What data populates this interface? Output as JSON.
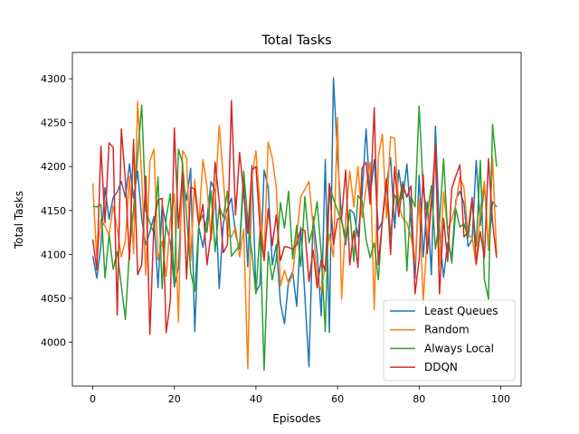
{
  "chart_data": {
    "type": "line",
    "title": "Total Tasks",
    "xlabel": "Episodes",
    "ylabel": "Total Tasks",
    "xlim": [
      -5,
      105
    ],
    "ylim": [
      3950,
      4330
    ],
    "xticks": [
      0,
      20,
      40,
      60,
      80,
      100
    ],
    "yticks": [
      4000,
      4050,
      4100,
      4150,
      4200,
      4250,
      4300
    ],
    "grid": false,
    "legend_position": "lower-right",
    "series": [
      {
        "name": "Least Queues",
        "color": "#1f77b4",
        "values": [
          4098,
          4073,
          4110,
          4176,
          4140,
          4165,
          4171,
          4183,
          4165,
          4203,
          4164,
          4195,
          4141,
          4111,
          4126,
          4143,
          4062,
          4156,
          4133,
          4114,
          4063,
          4085,
          4185,
          4162,
          4198,
          4012,
          4131,
          4108,
          4140,
          4183,
          4172,
          4061,
          4136,
          4152,
          4164,
          4123,
          4106,
          4185,
          4086,
          4201,
          4057,
          4066,
          4196,
          4177,
          4088,
          4111,
          4045,
          4021,
          4070,
          4080,
          4041,
          4131,
          4052,
          3972,
          4143,
          4102,
          4030,
          4208,
          4011,
          4301,
          4212,
          4140,
          4111,
          4151,
          4147,
          4120,
          4168,
          4243,
          4165,
          4208,
          4128,
          4138,
          4181,
          4210,
          4130,
          4196,
          4163,
          4203,
          4139,
          4072,
          4190,
          4097,
          4160,
          4077,
          4246,
          4124,
          4074,
          4113,
          4097,
          4162,
          4172,
          4158,
          4109,
          4117,
          4207,
          4133,
          4180,
          4105,
          4160,
          4154
        ]
      },
      {
        "name": "Random",
        "color": "#ff7f0e",
        "values": [
          4181,
          4093,
          4140,
          4132,
          4122,
          4155,
          4130,
          4097,
          4116,
          4189,
          4101,
          4274,
          4188,
          4076,
          4206,
          4220,
          4094,
          4115,
          4075,
          4138,
          4169,
          4023,
          4218,
          4210,
          4093,
          4185,
          4134,
          4208,
          4178,
          4116,
          4164,
          4247,
          4187,
          4122,
          4120,
          4131,
          4097,
          4129,
          3970,
          4188,
          4218,
          4154,
          4095,
          4228,
          4210,
          4176,
          4064,
          4082,
          4066,
          4077,
          4121,
          4166,
          4174,
          4183,
          4133,
          4073,
          4059,
          4087,
          4123,
          4097,
          4256,
          4049,
          4140,
          4195,
          4154,
          4200,
          4142,
          4176,
          4205,
          4037,
          4211,
          4237,
          4141,
          4234,
          4232,
          4156,
          4141,
          4136,
          4120,
          4092,
          4163,
          4046,
          4120,
          4165,
          4207,
          4088,
          4171,
          4128,
          4140,
          4157,
          4188,
          4176,
          4122,
          4119,
          4088,
          4150,
          4183,
          4106,
          4210,
          4100
        ]
      },
      {
        "name": "Always Local",
        "color": "#2ca02c",
        "values": [
          4155,
          4154,
          4157,
          4073,
          4123,
          4083,
          4103,
          4064,
          4026,
          4105,
          4151,
          4213,
          4270,
          4150,
          4136,
          4124,
          4188,
          4061,
          4142,
          4169,
          4065,
          4220,
          4204,
          4144,
          4080,
          4058,
          4135,
          4145,
          4125,
          4172,
          4103,
          4154,
          4142,
          4172,
          4098,
          4104,
          4110,
          4195,
          4138,
          4102,
          4055,
          4127,
          3968,
          4103,
          4071,
          4095,
          4159,
          4130,
          4172,
          4095,
          4133,
          4086,
          4166,
          4113,
          4131,
          4160,
          4101,
          4012,
          4179,
          4163,
          4150,
          4138,
          4119,
          4150,
          4092,
          4167,
          4161,
          4117,
          4096,
          4113,
          4071,
          4140,
          4185,
          4120,
          4168,
          4158,
          4183,
          4081,
          4166,
          4154,
          4269,
          4174,
          4146,
          4178,
          4106,
          4138,
          4209,
          4124,
          4090,
          4152,
          4131,
          4135,
          4119,
          4160,
          4109,
          4207,
          4072,
          4049,
          4248,
          4200
        ]
      },
      {
        "name": "DDQN",
        "color": "#d62728",
        "values": [
          4117,
          4082,
          4223,
          4136,
          4227,
          4222,
          4031,
          4243,
          4184,
          4094,
          4231,
          4077,
          4088,
          4189,
          4009,
          4135,
          4162,
          4164,
          4011,
          4046,
          4244,
          4130,
          4193,
          4072,
          4177,
          4174,
          4133,
          4157,
          4088,
          4124,
          4205,
          4160,
          4102,
          4111,
          4275,
          4145,
          4216,
          4169,
          4124,
          4196,
          4200,
          4130,
          4093,
          4152,
          4110,
          4145,
          4093,
          4109,
          4108,
          4106,
          4111,
          4129,
          4127,
          4069,
          4105,
          4062,
          4094,
          4081,
          4181,
          4111,
          4140,
          4142,
          4196,
          4088,
          4127,
          4085,
          4198,
          4205,
          4157,
          4267,
          4088,
          4139,
          4186,
          4100,
          4200,
          4143,
          4180,
          4165,
          4178,
          4055,
          4094,
          4191,
          4101,
          4156,
          4225,
          4055,
          4141,
          4092,
          4175,
          4189,
          4202,
          4120,
          4125,
          4165,
          4089,
          4126,
          4096,
          4209,
          4136,
          4096
        ]
      }
    ]
  }
}
